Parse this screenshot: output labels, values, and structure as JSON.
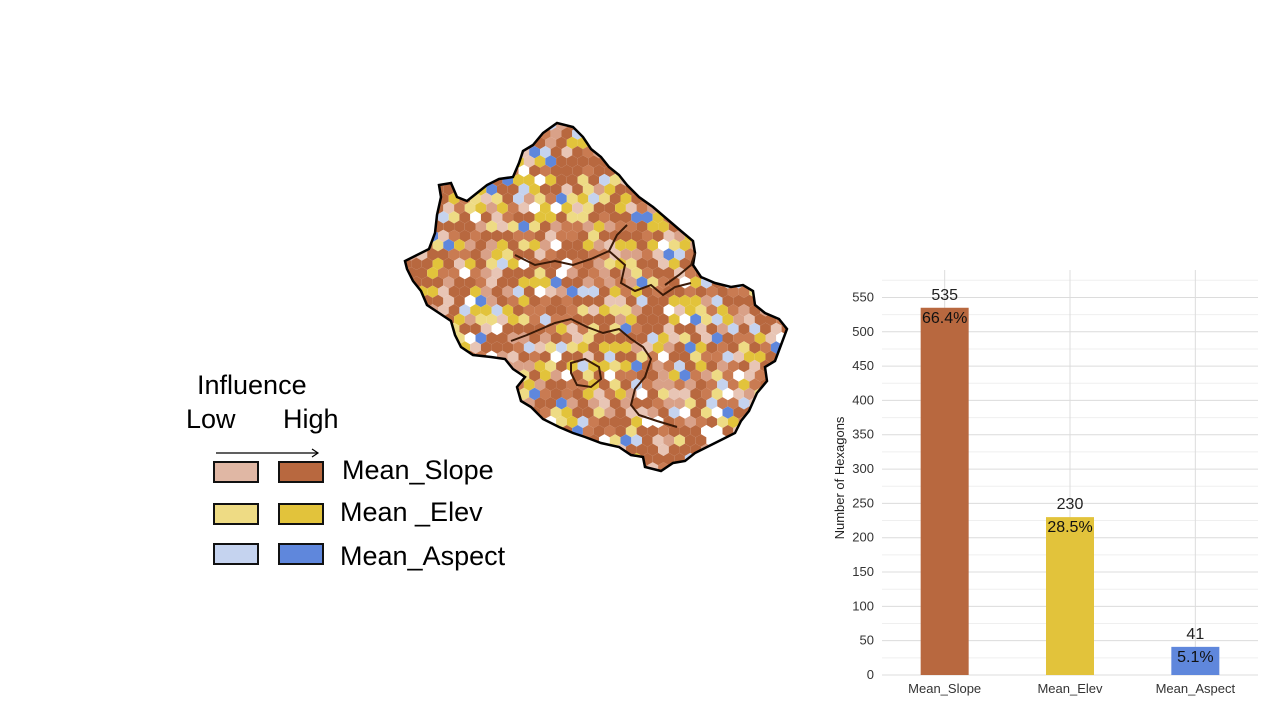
{
  "legend": {
    "title": "Influence",
    "low_label": "Low",
    "high_label": "High",
    "items": [
      {
        "label": "Mean_Slope",
        "low_color": "#e0b7a4",
        "high_color": "#b8683f"
      },
      {
        "label": "Mean _Elev",
        "low_color": "#eedb84",
        "high_color": "#e2c33b"
      },
      {
        "label": "Mean_Aspect",
        "low_color": "#c5d3ef",
        "high_color": "#5f87dc"
      }
    ]
  },
  "map": {
    "palette": [
      "#b8683f",
      "#c97b52",
      "#d9a188",
      "#e8c5b5",
      "#e2c33b",
      "#eedb84",
      "#5f87dc",
      "#c5d3ef",
      "#ffffff"
    ]
  },
  "chart_data": {
    "type": "bar",
    "categories": [
      "Mean_Slope",
      "Mean_Elev",
      "Mean_Aspect"
    ],
    "values": [
      535,
      230,
      41
    ],
    "percent_labels": [
      "66.4%",
      "28.5%",
      "5.1%"
    ],
    "colors": [
      "#b8683f",
      "#e2c33b",
      "#5f87dc"
    ],
    "ylabel": "Number of Hexagons",
    "xlabel": "",
    "ylim": [
      0,
      590
    ],
    "yticks": [
      0,
      50,
      100,
      150,
      200,
      250,
      300,
      350,
      400,
      450,
      500,
      550
    ],
    "grid": true
  }
}
